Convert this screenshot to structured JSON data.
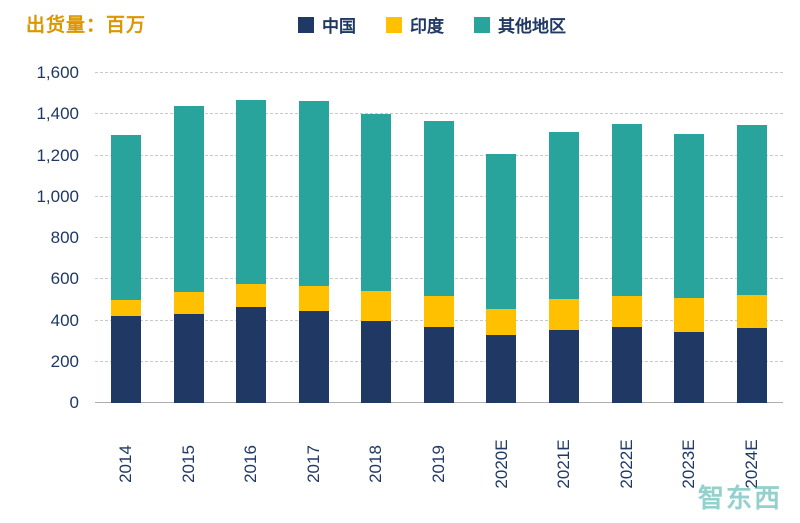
{
  "header": {
    "title": "出货量：百万"
  },
  "watermark": {
    "text": "智东西"
  },
  "colors": {
    "title": "#DD9500",
    "axis_labels": "#1F3864",
    "gridline": "#C9C9C9",
    "china": "#1F3864",
    "india": "#FFC000",
    "others": "#29A49C",
    "watermark": "#2BA39B"
  },
  "chart_data": {
    "type": "bar",
    "stacked": true,
    "title": "出货量：百万",
    "categories": [
      "2014",
      "2015",
      "2016",
      "2017",
      "2018",
      "2019",
      "2020E",
      "2021E",
      "2022E",
      "2023E",
      "2024E"
    ],
    "series": [
      {
        "name": "中国",
        "color": "#1F3864",
        "values": [
          421,
          434,
          467,
          444,
          398,
          369,
          330,
          355,
          370,
          345,
          365
        ]
      },
      {
        "name": "印度",
        "color": "#FFC000",
        "values": [
          80,
          104,
          109,
          124,
          145,
          150,
          125,
          150,
          150,
          165,
          160
        ]
      },
      {
        "name": "其他地区",
        "color": "#29A49C",
        "values": [
          800,
          900,
          895,
          897,
          860,
          850,
          750,
          810,
          835,
          795,
          825
        ]
      }
    ],
    "totals": [
      1301,
      1438,
      1471,
      1465,
      1403,
      1369,
      1205,
      1315,
      1355,
      1305,
      1350
    ],
    "ylim": [
      0,
      1600
    ],
    "yticks": [
      "0",
      "200",
      "400",
      "600",
      "800",
      "1,000",
      "1,200",
      "1,400",
      "1,600"
    ],
    "grid": "dashed horizontal",
    "legend_position": "top",
    "x_label_rotation": -90
  }
}
